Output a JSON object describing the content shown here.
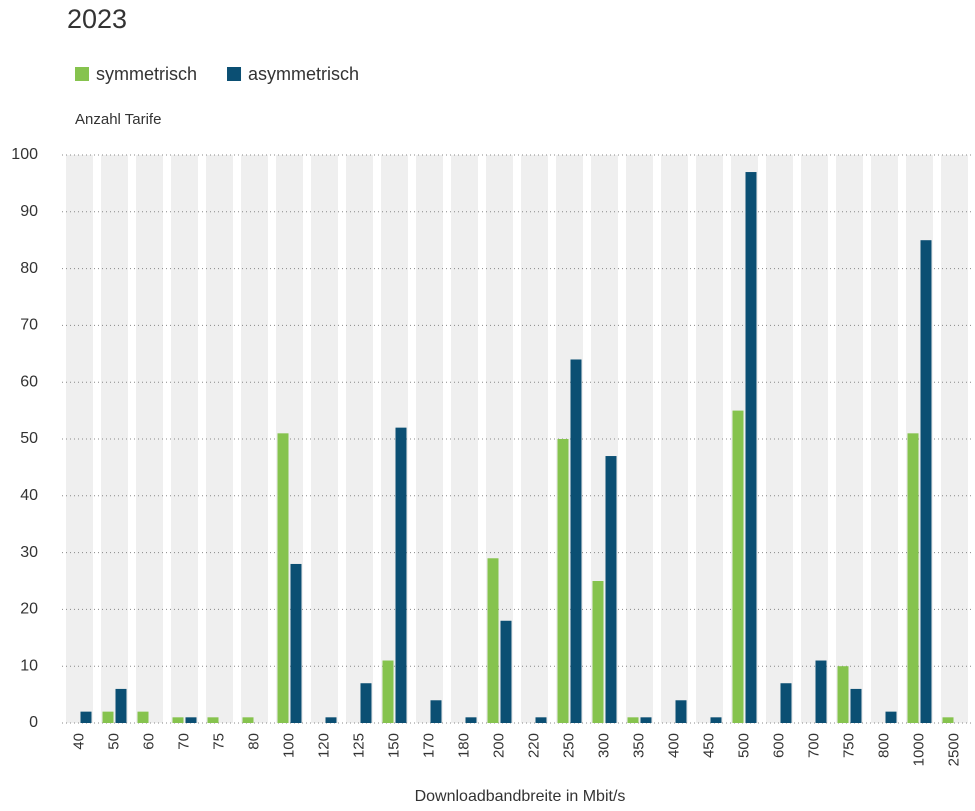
{
  "chart_data": {
    "type": "bar",
    "title": "2023",
    "y_label": "Anzahl Tarife",
    "x_label": "Downloadbandbreite in Mbit/s",
    "categories": [
      "40",
      "50",
      "60",
      "70",
      "75",
      "80",
      "100",
      "120",
      "125",
      "150",
      "170",
      "180",
      "200",
      "220",
      "250",
      "300",
      "350",
      "400",
      "450",
      "500",
      "600",
      "700",
      "750",
      "800",
      "1000",
      "2500"
    ],
    "series": [
      {
        "name": "symmetrisch",
        "color": "#86c34e",
        "values": [
          0,
          2,
          2,
          1,
          1,
          1,
          51,
          0,
          0,
          11,
          0,
          0,
          29,
          0,
          50,
          25,
          1,
          0,
          0,
          55,
          0,
          0,
          10,
          0,
          51,
          1
        ]
      },
      {
        "name": "asymmetrisch",
        "color": "#0b4f73",
        "values": [
          2,
          6,
          0,
          1,
          0,
          0,
          28,
          1,
          7,
          52,
          4,
          1,
          18,
          1,
          64,
          47,
          1,
          4,
          1,
          97,
          7,
          11,
          6,
          2,
          85,
          0
        ]
      }
    ],
    "ylim": [
      0,
      100
    ],
    "yticks": [
      0,
      10,
      20,
      30,
      40,
      50,
      60,
      70,
      80,
      90,
      100
    ],
    "grid": true,
    "legend": "top-left"
  }
}
